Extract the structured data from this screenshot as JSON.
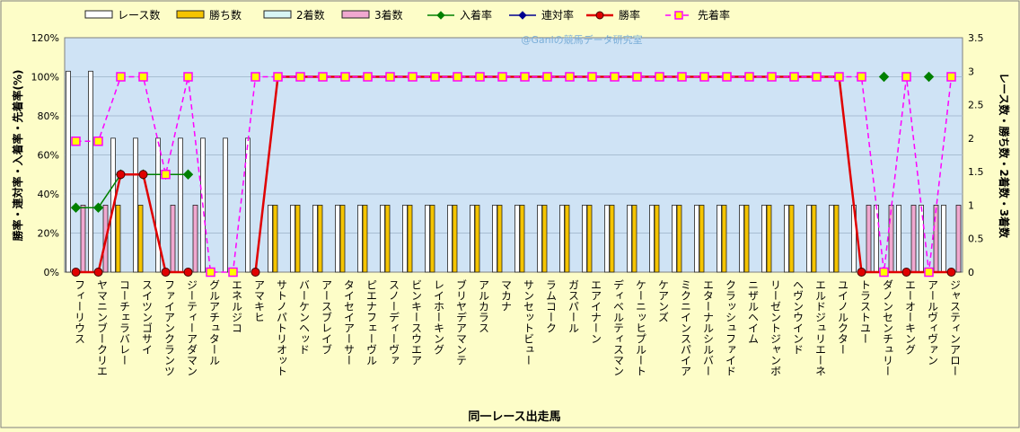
{
  "chart_data": {
    "type": "bar",
    "title": "",
    "watermark": "@Ganiの競馬データ研究室",
    "xlabel": "同一レース出走馬",
    "ylabel_left": "勝率・連対率・入着率・先着率(%)",
    "ylabel_right": "レース数・勝ち数・2着数・3着数",
    "ylim_left": [
      0,
      120
    ],
    "ylim_right": [
      0,
      3.5
    ],
    "yticks_left": [
      "0%",
      "20%",
      "40%",
      "60%",
      "80%",
      "100%",
      "120%"
    ],
    "yticks_right": [
      "0",
      "0.5",
      "1",
      "1.5",
      "2",
      "2.5",
      "3",
      "3.5"
    ],
    "legend_position": "top",
    "grid": true,
    "colors": {
      "background": "#fdfdc8",
      "plot_area": "#cfe3f5",
      "races_bar": "#ffffff",
      "wins_bar": "#f5c400",
      "second_bar": "#d8f5f5",
      "third_bar": "#f0a8d0",
      "placed_line": "#008000",
      "rentai_line": "#000090",
      "win_line": "#e00000",
      "ahead_line": "#ff00ff",
      "ahead_marker": "#ffff00"
    },
    "categories": [
      "フィーリウス",
      "ヤマニンブークリエ",
      "コーチェラバレー",
      "スイツンゴサイ",
      "ファイアンクランツ",
      "ジーティーアダマン",
      "グルアチュタール",
      "エネルジコ",
      "アマキヒ",
      "サトノパトリオット",
      "バーケンヘッド",
      "アースブレイブ",
      "タイセイアーサー",
      "ピエナフェーヴル",
      "スノーディーヴァ",
      "ビンキースウエア",
      "レイホーキング",
      "ブリヤデアマンテ",
      "アルカラス",
      "マカナ",
      "サンセットビュー",
      "ラムコーク",
      "ガスパール",
      "エアイナーン",
      "ディベルティスマン",
      "ケーニッヒプルート",
      "ケアンズ",
      "ミクニインスパイア",
      "エターナルシルバー",
      "クラッシュファイド",
      "ニザルヘイム",
      "リーゼントジャンボ",
      "ヘヴンウインド",
      "エルドジュリエーネ",
      "ユイノルクター",
      "トラストユー",
      "ダノンセンチュリー",
      "エーオーキング",
      "アールヴィヴァン",
      "ジャスティンアロー"
    ],
    "series": [
      {
        "name": "レース数",
        "axis": "right",
        "kind": "bar",
        "values": [
          3,
          3,
          2,
          2,
          2,
          2,
          2,
          2,
          2,
          1,
          1,
          1,
          1,
          1,
          1,
          1,
          1,
          1,
          1,
          1,
          1,
          1,
          1,
          1,
          1,
          1,
          1,
          1,
          1,
          1,
          1,
          1,
          1,
          1,
          1,
          1,
          1,
          1,
          1,
          1
        ]
      },
      {
        "name": "勝ち数",
        "axis": "right",
        "kind": "bar",
        "values": [
          0,
          0,
          1,
          1,
          0,
          0,
          0,
          0,
          0,
          1,
          1,
          1,
          1,
          1,
          1,
          1,
          1,
          1,
          1,
          1,
          1,
          1,
          1,
          1,
          1,
          1,
          1,
          1,
          1,
          1,
          1,
          1,
          1,
          1,
          1,
          0,
          0,
          0,
          0,
          0
        ]
      },
      {
        "name": "2着数",
        "axis": "right",
        "kind": "bar",
        "values": [
          0,
          0,
          0,
          0,
          0,
          0,
          0,
          0,
          0,
          0,
          0,
          0,
          0,
          0,
          0,
          0,
          0,
          0,
          0,
          0,
          0,
          0,
          0,
          0,
          0,
          0,
          0,
          0,
          0,
          0,
          0,
          0,
          0,
          0,
          0,
          0,
          0,
          0,
          0,
          0
        ]
      },
      {
        "name": "3着数",
        "axis": "right",
        "kind": "bar",
        "values": [
          1,
          1,
          0,
          0,
          1,
          1,
          0,
          0,
          0,
          0,
          0,
          0,
          0,
          0,
          0,
          0,
          0,
          0,
          0,
          0,
          0,
          0,
          0,
          0,
          0,
          0,
          0,
          0,
          0,
          0,
          0,
          0,
          0,
          0,
          0,
          1,
          1,
          1,
          1,
          1
        ]
      },
      {
        "name": "入着率",
        "axis": "left",
        "kind": "line",
        "values": [
          33,
          33,
          50,
          50,
          50,
          50,
          null,
          null,
          null,
          null,
          null,
          null,
          null,
          null,
          null,
          null,
          null,
          null,
          null,
          null,
          null,
          null,
          null,
          null,
          null,
          null,
          null,
          null,
          null,
          null,
          null,
          null,
          null,
          null,
          null,
          null,
          100,
          null,
          100,
          null
        ]
      },
      {
        "name": "連対率",
        "axis": "left",
        "kind": "line",
        "values": [
          null,
          null,
          null,
          null,
          null,
          null,
          null,
          null,
          null,
          null,
          null,
          null,
          null,
          null,
          null,
          null,
          null,
          null,
          null,
          null,
          null,
          null,
          null,
          null,
          null,
          null,
          null,
          null,
          null,
          null,
          null,
          null,
          null,
          null,
          null,
          null,
          null,
          null,
          null,
          null
        ]
      },
      {
        "name": "勝率",
        "axis": "left",
        "kind": "line",
        "values": [
          0,
          0,
          50,
          50,
          0,
          0,
          null,
          null,
          0,
          100,
          100,
          100,
          100,
          100,
          100,
          100,
          100,
          100,
          100,
          100,
          100,
          100,
          100,
          100,
          100,
          100,
          100,
          100,
          100,
          100,
          100,
          100,
          100,
          100,
          100,
          0,
          0,
          0,
          0,
          0
        ]
      },
      {
        "name": "先着率",
        "axis": "left",
        "kind": "line",
        "values": [
          67,
          67,
          100,
          100,
          50,
          100,
          0,
          0,
          100,
          100,
          100,
          100,
          100,
          100,
          100,
          100,
          100,
          100,
          100,
          100,
          100,
          100,
          100,
          100,
          100,
          100,
          100,
          100,
          100,
          100,
          100,
          100,
          100,
          100,
          100,
          100,
          0,
          100,
          0,
          100
        ]
      }
    ]
  }
}
